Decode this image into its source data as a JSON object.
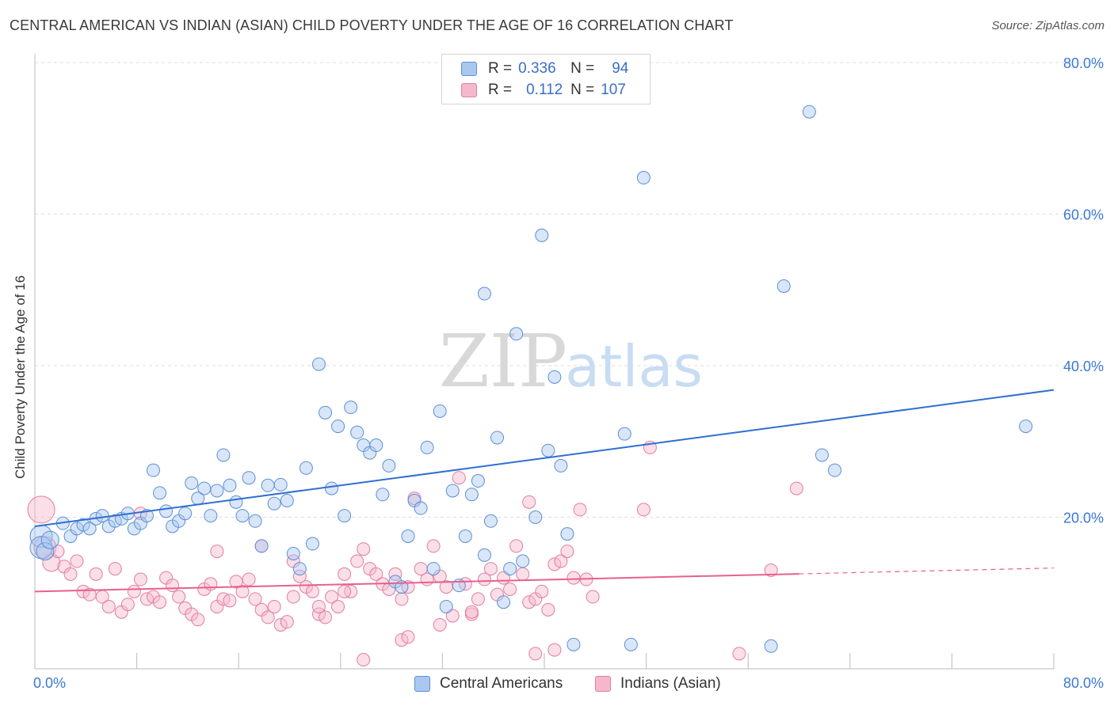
{
  "title": "CENTRAL AMERICAN VS INDIAN (ASIAN) CHILD POVERTY UNDER THE AGE OF 16 CORRELATION CHART",
  "source": "Source: ZipAtlas.com",
  "watermark": {
    "zip": "ZIP",
    "atlas": "atlas"
  },
  "legend": {
    "rows": [
      {
        "r_label": "R =",
        "r_value": "0.336",
        "n_label": "N =",
        "n_value": "94"
      },
      {
        "r_label": "R =",
        "r_value": "0.112",
        "n_label": "N =",
        "n_value": "107"
      }
    ]
  },
  "bottom_legend": {
    "series1": "Central Americans",
    "series2": "Indians (Asian)"
  },
  "colors": {
    "blue_fill": "#a9c8f0",
    "blue_stroke": "#5b8fd8",
    "blue_line": "#2f6fd0",
    "pink_fill": "#f5b8cb",
    "pink_stroke": "#e37ca0",
    "pink_line": "#e8608e",
    "axis_text": "#3b78d6",
    "grid": "#dedede"
  },
  "chart_data": {
    "type": "scatter",
    "title": "CENTRAL AMERICAN VS INDIAN (ASIAN) CHILD POVERTY UNDER THE AGE OF 16 CORRELATION CHART",
    "xlabel": "",
    "ylabel": "Child Poverty Under the Age of 16",
    "xlim": [
      0,
      80
    ],
    "ylim": [
      0,
      80
    ],
    "x_tick_labels": [
      "0.0%",
      "80.0%"
    ],
    "y_tick_labels": [
      "20.0%",
      "40.0%",
      "60.0%",
      "80.0%"
    ],
    "y_ticks": [
      20,
      40,
      60,
      80
    ],
    "series": [
      {
        "name": "Central Americans",
        "R": 0.336,
        "N": 94,
        "trend": {
          "x0": 0,
          "y0": 18.8,
          "x1": 80,
          "y1": 36.8
        },
        "points": [
          [
            0.5,
            17.5,
            3
          ],
          [
            0.5,
            16,
            3
          ],
          [
            0.8,
            15.5,
            2
          ],
          [
            1.2,
            17,
            2
          ],
          [
            2.2,
            19.2,
            1
          ],
          [
            2.8,
            17.5,
            1
          ],
          [
            3.3,
            18.5,
            1
          ],
          [
            3.8,
            19,
            1
          ],
          [
            4.3,
            18.5,
            1
          ],
          [
            4.8,
            19.8,
            1
          ],
          [
            5.3,
            20.2,
            1
          ],
          [
            5.8,
            18.8,
            1
          ],
          [
            6.3,
            19.5,
            1
          ],
          [
            6.8,
            19.8,
            1
          ],
          [
            7.3,
            20.5,
            1
          ],
          [
            7.8,
            18.5,
            1
          ],
          [
            8.3,
            19.2,
            1
          ],
          [
            8.8,
            20.2,
            1
          ],
          [
            9.3,
            26.2,
            1
          ],
          [
            9.8,
            23.2,
            1
          ],
          [
            10.3,
            20.8,
            1
          ],
          [
            10.8,
            18.8,
            1
          ],
          [
            11.3,
            19.5,
            1
          ],
          [
            11.8,
            20.5,
            1
          ],
          [
            12.3,
            24.5,
            1
          ],
          [
            12.8,
            22.5,
            1
          ],
          [
            13.3,
            23.8,
            1
          ],
          [
            13.8,
            20.2,
            1
          ],
          [
            14.3,
            23.5,
            1
          ],
          [
            14.8,
            28.2,
            1
          ],
          [
            15.3,
            24.2,
            1
          ],
          [
            15.8,
            22.0,
            1
          ],
          [
            16.3,
            20.2,
            1
          ],
          [
            16.8,
            25.2,
            1
          ],
          [
            17.3,
            19.5,
            1
          ],
          [
            17.8,
            16.2,
            1
          ],
          [
            18.3,
            24.2,
            1
          ],
          [
            18.8,
            21.8,
            1
          ],
          [
            19.3,
            24.3,
            1
          ],
          [
            19.8,
            22.2,
            1
          ],
          [
            20.3,
            15.2,
            1
          ],
          [
            20.8,
            13.2,
            1
          ],
          [
            21.3,
            26.5,
            1
          ],
          [
            21.8,
            16.5,
            1
          ],
          [
            22.3,
            40.2,
            1
          ],
          [
            22.8,
            33.8,
            1
          ],
          [
            23.3,
            23.8,
            1
          ],
          [
            23.8,
            32.0,
            1
          ],
          [
            24.3,
            20.2,
            1
          ],
          [
            24.8,
            34.5,
            1
          ],
          [
            25.3,
            31.2,
            1
          ],
          [
            25.8,
            29.5,
            1
          ],
          [
            26.3,
            28.5,
            1
          ],
          [
            26.8,
            29.5,
            1
          ],
          [
            27.3,
            23.0,
            1
          ],
          [
            27.8,
            26.8,
            1
          ],
          [
            28.3,
            11.5,
            1
          ],
          [
            28.8,
            10.8,
            1
          ],
          [
            29.3,
            17.5,
            1
          ],
          [
            29.8,
            22.2,
            1
          ],
          [
            30.3,
            21.2,
            1
          ],
          [
            30.8,
            29.2,
            1
          ],
          [
            31.3,
            13.2,
            1
          ],
          [
            31.8,
            34.0,
            1
          ],
          [
            32.3,
            8.2,
            1
          ],
          [
            32.8,
            23.5,
            1
          ],
          [
            33.3,
            11.0,
            1
          ],
          [
            33.8,
            17.5,
            1
          ],
          [
            34.3,
            23.0,
            1
          ],
          [
            34.8,
            24.8,
            1
          ],
          [
            35.3,
            15.0,
            1
          ],
          [
            35.8,
            19.5,
            1
          ],
          [
            36.3,
            30.5,
            1
          ],
          [
            36.8,
            8.8,
            1
          ],
          [
            37.3,
            13.2,
            1
          ],
          [
            37.8,
            44.2,
            1
          ],
          [
            38.3,
            14.2,
            1
          ],
          [
            39.3,
            20.0,
            1
          ],
          [
            39.8,
            57.2,
            1
          ],
          [
            40.3,
            28.8,
            1
          ],
          [
            40.8,
            38.5,
            1
          ],
          [
            41.3,
            26.8,
            1
          ],
          [
            41.8,
            17.8,
            1
          ],
          [
            42.3,
            3.2,
            1
          ],
          [
            35.3,
            49.5,
            1
          ],
          [
            46.3,
            31.0,
            1
          ],
          [
            46.8,
            3.2,
            1
          ],
          [
            47.8,
            64.8,
            1
          ],
          [
            57.8,
            3.0,
            1
          ],
          [
            58.8,
            50.5,
            1
          ],
          [
            60.8,
            73.5,
            1
          ],
          [
            61.8,
            28.2,
            1
          ],
          [
            62.8,
            26.2,
            1
          ],
          [
            77.8,
            32.0,
            1
          ]
        ]
      },
      {
        "name": "Indians (Asian)",
        "R": 0.112,
        "N": 107,
        "trend": {
          "x0": 0,
          "y0": 10.2,
          "x1": 80,
          "y1": 13.3,
          "solid_until_x": 60
        },
        "points": [
          [
            0.5,
            21,
            4
          ],
          [
            0.8,
            16,
            3
          ],
          [
            1.3,
            14,
            2
          ],
          [
            1.8,
            15.5,
            1
          ],
          [
            2.3,
            13.5,
            1
          ],
          [
            2.8,
            12.5,
            1
          ],
          [
            3.3,
            14.2,
            1
          ],
          [
            3.8,
            10.2,
            1
          ],
          [
            4.3,
            9.8,
            1
          ],
          [
            4.8,
            12.5,
            1
          ],
          [
            5.3,
            9.5,
            1
          ],
          [
            5.8,
            8.2,
            1
          ],
          [
            6.3,
            13.2,
            1
          ],
          [
            6.8,
            7.5,
            1
          ],
          [
            7.3,
            8.5,
            1
          ],
          [
            7.8,
            10.2,
            1
          ],
          [
            8.3,
            11.8,
            1
          ],
          [
            8.8,
            9.2,
            1
          ],
          [
            9.3,
            9.5,
            1
          ],
          [
            9.8,
            8.8,
            1
          ],
          [
            10.3,
            12.0,
            1
          ],
          [
            10.8,
            11.0,
            1
          ],
          [
            11.3,
            9.5,
            1
          ],
          [
            11.8,
            8.0,
            1
          ],
          [
            12.3,
            7.2,
            1
          ],
          [
            12.8,
            6.5,
            1
          ],
          [
            13.3,
            10.5,
            1
          ],
          [
            13.8,
            11.2,
            1
          ],
          [
            14.3,
            8.2,
            1
          ],
          [
            14.8,
            9.2,
            1
          ],
          [
            15.3,
            9.0,
            1
          ],
          [
            15.8,
            11.5,
            1
          ],
          [
            16.3,
            10.2,
            1
          ],
          [
            16.8,
            11.8,
            1
          ],
          [
            17.3,
            9.2,
            1
          ],
          [
            17.8,
            7.8,
            1
          ],
          [
            18.3,
            6.8,
            1
          ],
          [
            18.8,
            8.2,
            1
          ],
          [
            19.3,
            5.8,
            1
          ],
          [
            19.8,
            6.2,
            1
          ],
          [
            20.3,
            9.5,
            1
          ],
          [
            20.8,
            12.2,
            1
          ],
          [
            21.3,
            10.8,
            1
          ],
          [
            21.8,
            10.2,
            1
          ],
          [
            22.3,
            7.2,
            1
          ],
          [
            22.8,
            6.8,
            1
          ],
          [
            23.3,
            9.5,
            1
          ],
          [
            23.8,
            8.2,
            1
          ],
          [
            24.3,
            12.5,
            1
          ],
          [
            24.8,
            10.2,
            1
          ],
          [
            25.3,
            14.2,
            1
          ],
          [
            25.8,
            15.8,
            1
          ],
          [
            26.3,
            13.2,
            1
          ],
          [
            26.8,
            12.5,
            1
          ],
          [
            27.3,
            11.2,
            1
          ],
          [
            27.8,
            10.5,
            1
          ],
          [
            28.3,
            12.5,
            1
          ],
          [
            28.8,
            9.2,
            1
          ],
          [
            29.3,
            10.8,
            1
          ],
          [
            29.8,
            22.5,
            1
          ],
          [
            30.3,
            13.2,
            1
          ],
          [
            30.8,
            11.8,
            1
          ],
          [
            31.3,
            16.2,
            1
          ],
          [
            31.8,
            12.2,
            1
          ],
          [
            32.3,
            10.8,
            1
          ],
          [
            32.8,
            7.0,
            1
          ],
          [
            33.3,
            25.2,
            1
          ],
          [
            33.8,
            11.2,
            1
          ],
          [
            34.3,
            7.2,
            1
          ],
          [
            34.8,
            9.2,
            1
          ],
          [
            35.3,
            11.8,
            1
          ],
          [
            35.8,
            13.2,
            1
          ],
          [
            36.3,
            9.8,
            1
          ],
          [
            36.8,
            12.0,
            1
          ],
          [
            37.3,
            10.5,
            1
          ],
          [
            37.8,
            16.2,
            1
          ],
          [
            38.3,
            12.5,
            1
          ],
          [
            38.8,
            8.8,
            1
          ],
          [
            39.3,
            9.2,
            1
          ],
          [
            39.8,
            10.2,
            1
          ],
          [
            40.3,
            7.8,
            1
          ],
          [
            40.8,
            13.8,
            1
          ],
          [
            41.3,
            14.2,
            1
          ],
          [
            41.8,
            15.5,
            1
          ],
          [
            42.3,
            12.0,
            1
          ],
          [
            42.8,
            21.0,
            1
          ],
          [
            43.3,
            11.8,
            1
          ],
          [
            43.8,
            9.5,
            1
          ],
          [
            47.8,
            21.0,
            1
          ],
          [
            48.3,
            29.2,
            1
          ],
          [
            8.3,
            20.5,
            1
          ],
          [
            14.3,
            15.5,
            1
          ],
          [
            17.8,
            16.2,
            1
          ],
          [
            20.3,
            14.2,
            1
          ],
          [
            22.3,
            8.2,
            1
          ],
          [
            24.3,
            10.2,
            1
          ],
          [
            25.8,
            1.2,
            1
          ],
          [
            28.8,
            3.8,
            1
          ],
          [
            29.3,
            4.2,
            1
          ],
          [
            31.8,
            5.8,
            1
          ],
          [
            34.3,
            7.5,
            1
          ],
          [
            38.8,
            22.0,
            1
          ],
          [
            39.3,
            2.0,
            1
          ],
          [
            40.8,
            2.5,
            1
          ],
          [
            55.3,
            2.0,
            1
          ],
          [
            57.8,
            13.0,
            1
          ],
          [
            59.8,
            23.8,
            1
          ]
        ]
      }
    ]
  }
}
